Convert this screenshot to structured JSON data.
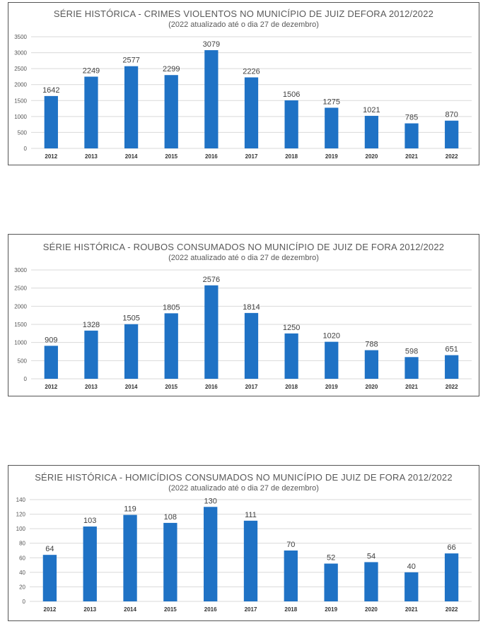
{
  "colors": {
    "bar": "#1f72c5",
    "grid": "#d9d9d9",
    "border": "#555555",
    "text": "#595959"
  },
  "chart_data": [
    {
      "type": "bar",
      "title": "SÉRIE HISTÓRICA - CRIMES VIOLENTOS NO MUNICÍPIO DE JUIZ DEFORA 2012/2022",
      "subtitle": "(2022 atualizado até o dia 27 de dezembro)",
      "categories": [
        "2012",
        "2013",
        "2014",
        "2015",
        "2016",
        "2017",
        "2018",
        "2019",
        "2020",
        "2021",
        "2022"
      ],
      "values": [
        1642,
        2249,
        2577,
        2299,
        3079,
        2226,
        1506,
        1275,
        1021,
        785,
        870
      ],
      "ylim": [
        0,
        3500
      ],
      "yticks": [
        "0",
        "500",
        "1000",
        "1500",
        "2000",
        "2500",
        "3000",
        "3500"
      ],
      "grid": true
    },
    {
      "type": "bar",
      "title": "SÉRIE HISTÓRICA - ROUBOS CONSUMADOS NO MUNICÍPIO DE JUIZ DE FORA 2012/2022",
      "subtitle": "(2022 atualizado até o dia 27 de dezembro)",
      "categories": [
        "2012",
        "2013",
        "2014",
        "2015",
        "2016",
        "2017",
        "2018",
        "2019",
        "2020",
        "2021",
        "2022"
      ],
      "values": [
        909,
        1328,
        1505,
        1805,
        2576,
        1814,
        1250,
        1020,
        788,
        598,
        651
      ],
      "ylim": [
        0,
        3000
      ],
      "yticks": [
        "0",
        "500",
        "1000",
        "1500",
        "2000",
        "2500",
        "3000"
      ],
      "grid": true
    },
    {
      "type": "bar",
      "title": "SÉRIE HISTÓRICA - HOMICÍDIOS CONSUMADOS NO MUNICÍPIO DE JUIZ DE FORA 2012/2022",
      "subtitle": "(2022 atualizado até o dia 27 de dezembro)",
      "categories": [
        "2012",
        "2013",
        "2014",
        "2015",
        "2016",
        "2017",
        "2018",
        "2019",
        "2020",
        "2021",
        "2022"
      ],
      "values": [
        64,
        103,
        119,
        108,
        130,
        111,
        70,
        52,
        54,
        40,
        66
      ],
      "ylim": [
        0,
        140
      ],
      "yticks": [
        "0",
        "20",
        "40",
        "60",
        "80",
        "100",
        "120",
        "140"
      ],
      "grid": true
    }
  ]
}
